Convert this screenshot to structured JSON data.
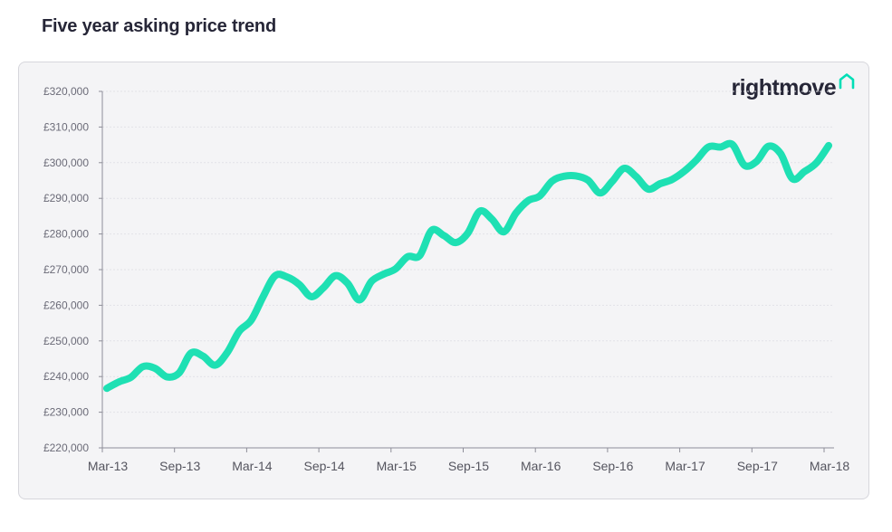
{
  "header": {
    "title": "Five year asking price trend"
  },
  "brand": {
    "name": "rightmove",
    "icon": "house-icon",
    "color": "#262637",
    "icon_color": "#00deb6"
  },
  "chart_data": {
    "type": "line",
    "title": "",
    "xlabel": "",
    "ylabel": "",
    "ylim": [
      220000,
      320000
    ],
    "y_ticks": [
      220000,
      230000,
      240000,
      250000,
      260000,
      270000,
      280000,
      290000,
      300000,
      310000,
      320000
    ],
    "y_tick_labels": [
      "£220,000",
      "£230,000",
      "£240,000",
      "£250,000",
      "£260,000",
      "£270,000",
      "£280,000",
      "£290,000",
      "£300,000",
      "£310,000",
      "£320,000"
    ],
    "x_tick_labels": [
      "Mar-13",
      "Sep-13",
      "Mar-14",
      "Sep-14",
      "Mar-15",
      "Sep-15",
      "Mar-16",
      "Sep-16",
      "Mar-17",
      "Sep-17",
      "Mar-18"
    ],
    "grid": true,
    "series": [
      {
        "color": "#1ee0b3",
        "x": [
          "Mar-13",
          "Apr-13",
          "May-13",
          "Jun-13",
          "Jul-13",
          "Aug-13",
          "Sep-13",
          "Oct-13",
          "Nov-13",
          "Dec-13",
          "Jan-14",
          "Feb-14",
          "Mar-14",
          "Apr-14",
          "May-14",
          "Jun-14",
          "Jul-14",
          "Aug-14",
          "Sep-14",
          "Oct-14",
          "Nov-14",
          "Dec-14",
          "Jan-15",
          "Feb-15",
          "Mar-15",
          "Apr-15",
          "May-15",
          "Jun-15",
          "Jul-15",
          "Aug-15",
          "Sep-15",
          "Oct-15",
          "Nov-15",
          "Dec-15",
          "Jan-16",
          "Feb-16",
          "Mar-16",
          "Apr-16",
          "May-16",
          "Jun-16",
          "Jul-16",
          "Aug-16",
          "Sep-16",
          "Oct-16",
          "Nov-16",
          "Dec-16",
          "Jan-17",
          "Feb-17",
          "Mar-17",
          "Apr-17",
          "May-17",
          "Jun-17",
          "Jul-17",
          "Aug-17",
          "Sep-17",
          "Oct-17",
          "Nov-17",
          "Dec-17",
          "Jan-18",
          "Feb-18",
          "Mar-18"
        ],
        "values": [
          236700,
          238500,
          239800,
          242800,
          242300,
          239900,
          241000,
          246600,
          245700,
          243200,
          246700,
          252700,
          255800,
          262500,
          268300,
          267900,
          265800,
          262400,
          264900,
          268300,
          266200,
          261500,
          266700,
          268700,
          270200,
          273600,
          273900,
          281000,
          279600,
          277600,
          280200,
          286400,
          284200,
          280600,
          285800,
          289300,
          290700,
          294800,
          296200,
          296300,
          295100,
          291500,
          294700,
          298400,
          296100,
          292600,
          294100,
          295300,
          297600,
          300700,
          304400,
          304400,
          305100,
          299300,
          300300,
          304600,
          302600,
          295500,
          297500,
          300000,
          304800
        ]
      }
    ]
  }
}
